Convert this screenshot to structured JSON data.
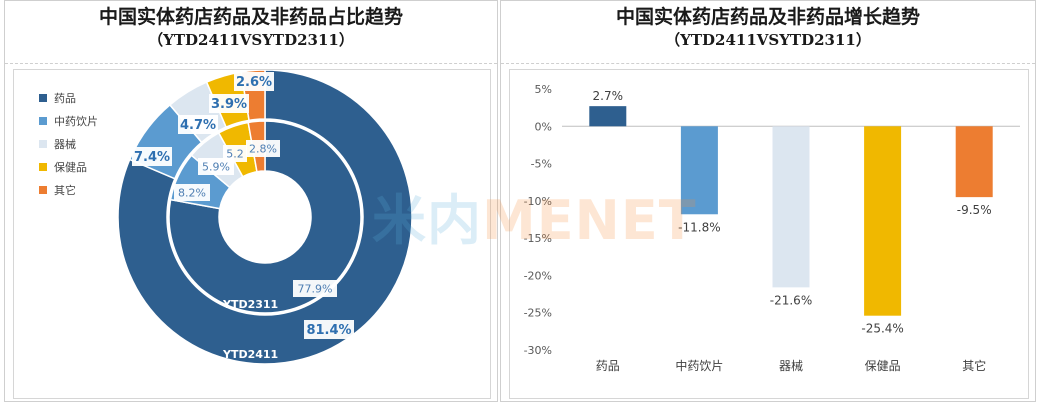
{
  "left_panel": {
    "title": "中国实体药店药品及非药品占比趋势",
    "subtitle": "（YTD2411VSYTD2311）"
  },
  "right_panel": {
    "title": "中国实体药店药品及非药品增长趋势",
    "subtitle": "（YTD2411VSYTD2311）"
  },
  "watermark": {
    "part_a": "米内",
    "part_b": "MENET"
  },
  "chart_data": [
    {
      "type": "pie",
      "variant": "doughnut",
      "categories": [
        "药品",
        "中药饮片",
        "器械",
        "保健品",
        "其它"
      ],
      "colors": [
        "#2e5f8f",
        "#5b9bd0",
        "#dce6f0",
        "#f0b800",
        "#ed7d31"
      ],
      "legend_position": "left",
      "rings": [
        {
          "name": "YTD2411",
          "position": "outer",
          "values": [
            81.4,
            7.4,
            4.7,
            3.9,
            2.6
          ],
          "labels": [
            "81.4%",
            "7.4%",
            "4.7%",
            "3.9%",
            "2.6%"
          ]
        },
        {
          "name": "YTD2311",
          "position": "inner",
          "values": [
            77.9,
            8.2,
            5.9,
            5.2,
            2.8
          ],
          "labels": [
            "77.9%",
            "8.2%",
            "5.9%",
            "5.2",
            "2.8%"
          ]
        }
      ]
    },
    {
      "type": "bar",
      "categories": [
        "药品",
        "中药饮片",
        "器械",
        "保健品",
        "其它"
      ],
      "values": [
        2.7,
        -11.8,
        -21.6,
        -25.4,
        -9.5
      ],
      "value_labels": [
        "2.7%",
        "-11.8%",
        "-21.6%",
        "-25.4%",
        "-9.5%"
      ],
      "colors": [
        "#2e5f8f",
        "#5b9bd0",
        "#dce6f0",
        "#f0b800",
        "#ed7d31"
      ],
      "ylim": [
        -30,
        5
      ],
      "yticks": [
        5,
        0,
        -5,
        -10,
        -15,
        -20,
        -25,
        -30
      ],
      "ytick_labels": [
        "5%",
        "0%",
        "-5%",
        "-10%",
        "-15%",
        "-20%",
        "-25%",
        "-30%"
      ],
      "grid": false
    }
  ]
}
